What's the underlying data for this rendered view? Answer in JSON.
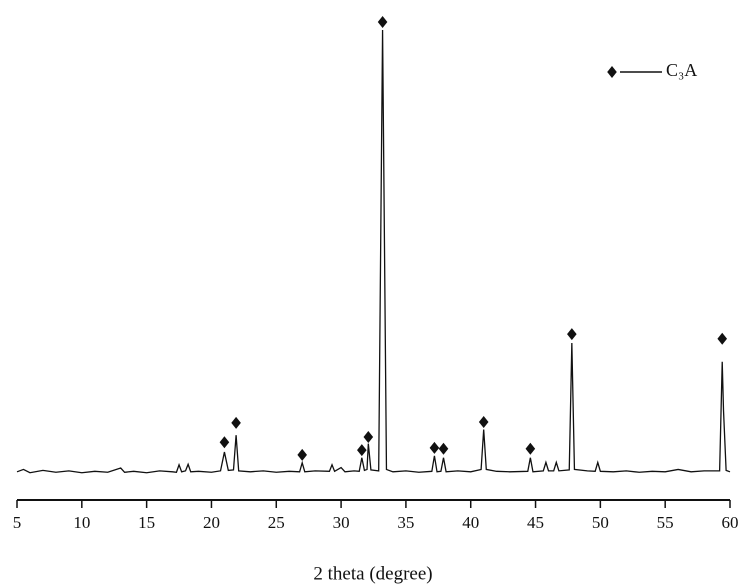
{
  "chart_data": {
    "type": "line",
    "x_label": "2 theta (degree)",
    "xlim": [
      5,
      60
    ],
    "xticks": [
      5,
      10,
      15,
      20,
      25,
      30,
      35,
      40,
      45,
      50,
      55,
      60
    ],
    "ylim": [
      0,
      102
    ],
    "legend": "upper right",
    "series": [
      {
        "color": "#111111",
        "x": [
          5,
          5.5,
          6,
          7,
          8,
          9,
          10,
          11,
          12,
          13,
          13.3,
          14,
          15,
          16,
          17,
          17.3,
          17.5,
          17.7,
          18.0,
          18.2,
          18.4,
          19,
          20,
          20.7,
          21.0,
          21.3,
          21.7,
          21.9,
          22.1,
          23,
          24,
          25,
          26,
          26.8,
          27.0,
          27.2,
          28,
          29.1,
          29.3,
          29.5,
          30,
          30.3,
          31,
          31.4,
          31.6,
          31.8,
          32.0,
          32.1,
          32.3,
          32.9,
          33.2,
          33.5,
          34,
          35,
          36,
          37.0,
          37.2,
          37.4,
          37.7,
          37.9,
          38.1,
          39,
          40,
          40.8,
          41.0,
          41.2,
          42,
          43,
          44.4,
          44.6,
          44.8,
          45.6,
          45.8,
          46.0,
          46.4,
          46.6,
          46.8,
          47.6,
          47.8,
          48.0,
          49,
          49.6,
          49.8,
          50.0,
          51,
          52,
          53,
          54,
          55,
          56,
          57,
          58,
          59.2,
          59.4,
          59.5,
          59.7,
          60
        ],
        "values": [
          6,
          6.5,
          5.8,
          6.3,
          5.9,
          6.2,
          5.8,
          6.1,
          5.9,
          6.8,
          5.9,
          6.1,
          5.8,
          6.2,
          6.0,
          5.9,
          7.5,
          6.0,
          6.2,
          7.6,
          6.0,
          6.1,
          5.9,
          6.2,
          10.2,
          6.3,
          6.4,
          13.8,
          6.2,
          6.0,
          6.2,
          5.9,
          6.1,
          6.0,
          7.9,
          6.0,
          6.2,
          6.1,
          7.5,
          6.1,
          6.9,
          6.0,
          6.2,
          6.1,
          9.0,
          6.3,
          6.5,
          12.0,
          6.4,
          6.2,
          100,
          6.5,
          6.0,
          6.2,
          5.9,
          6.1,
          9.4,
          6.0,
          6.1,
          9.0,
          6.0,
          6.2,
          6.0,
          6.5,
          15.0,
          6.5,
          6.1,
          6.0,
          6.1,
          9.0,
          6.0,
          6.2,
          8.0,
          6.2,
          6.2,
          8.0,
          6.2,
          6.4,
          33.4,
          6.5,
          6.2,
          6.1,
          8.0,
          6.1,
          6.0,
          6.2,
          5.9,
          6.1,
          6.0,
          6.5,
          6.0,
          6.2,
          6.2,
          29.4,
          19,
          6.3,
          6.0
        ]
      },
      {
        "name": "C₃A",
        "color": "#111111",
        "marker": "diamond",
        "x": [
          21.0,
          21.9,
          27.0,
          31.6,
          32.1,
          33.2,
          37.2,
          37.9,
          41.0,
          44.6,
          47.8,
          59.4
        ],
        "values": [
          12.3,
          16.4,
          9.6,
          10.6,
          13.4,
          101.7,
          11.1,
          10.9,
          16.6,
          10.9,
          35.3,
          34.3
        ]
      }
    ]
  }
}
